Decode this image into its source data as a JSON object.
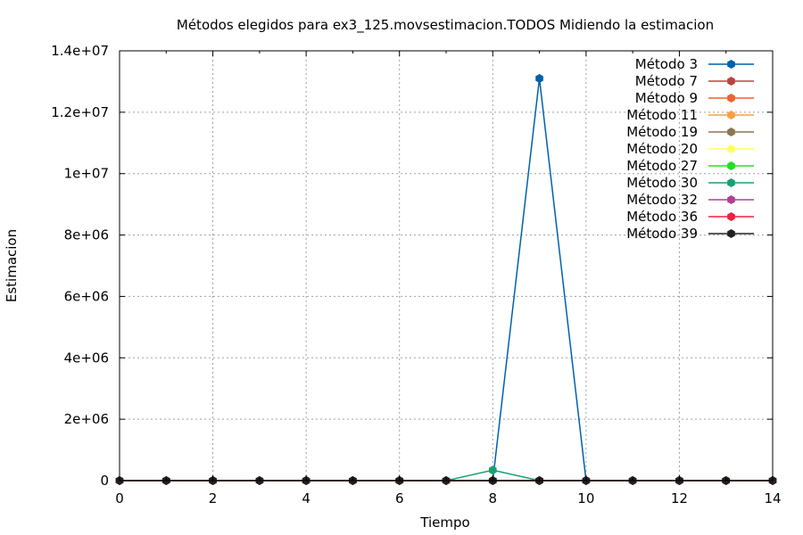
{
  "chart_data": {
    "type": "line",
    "title": "Métodos elegidos para ex3_125.movsestimacion.TODOS Midiendo la estimacion",
    "xlabel": "Tiempo",
    "ylabel": "Estimacion",
    "xlim": [
      0,
      14
    ],
    "ylim": [
      0,
      14000000
    ],
    "x_ticks": [
      0,
      2,
      4,
      6,
      8,
      10,
      12,
      14
    ],
    "x_tick_labels": [
      "0",
      "2",
      "4",
      "6",
      "8",
      "10",
      "12",
      "14"
    ],
    "y_ticks": [
      0,
      2000000,
      4000000,
      6000000,
      8000000,
      10000000,
      12000000,
      14000000
    ],
    "y_tick_labels": [
      "0",
      "2e+06",
      "4e+06",
      "6e+06",
      "8e+06",
      "1e+07",
      "1.2e+07",
      "1.4e+07"
    ],
    "grid": true,
    "legend_position": "top-right",
    "x": [
      0,
      1,
      2,
      3,
      4,
      5,
      6,
      7,
      8,
      9,
      10,
      11,
      12,
      13,
      14
    ],
    "series": [
      {
        "name": "Método 3",
        "color": "#0060ad",
        "values": [
          0,
          0,
          0,
          0,
          0,
          0,
          0,
          0,
          0,
          13100000,
          0,
          0,
          0,
          0,
          0
        ]
      },
      {
        "name": "Método 7",
        "color": "#c04040",
        "values": [
          0,
          0,
          0,
          0,
          0,
          0,
          0,
          0,
          0,
          0,
          0,
          0,
          0,
          0,
          0
        ]
      },
      {
        "name": "Método 9",
        "color": "#f06030",
        "values": [
          0,
          0,
          0,
          0,
          0,
          0,
          0,
          0,
          0,
          0,
          0,
          0,
          0,
          0,
          0
        ]
      },
      {
        "name": "Método 11",
        "color": "#f5a040",
        "values": [
          0,
          0,
          0,
          0,
          0,
          0,
          0,
          0,
          0,
          0,
          0,
          0,
          0,
          0,
          0
        ]
      },
      {
        "name": "Método 19",
        "color": "#8b7650",
        "values": [
          0,
          0,
          0,
          0,
          0,
          0,
          0,
          0,
          0,
          0,
          0,
          0,
          0,
          0,
          0
        ]
      },
      {
        "name": "Método 20",
        "color": "#ffff60",
        "values": [
          0,
          0,
          0,
          0,
          0,
          0,
          0,
          0,
          0,
          0,
          0,
          0,
          0,
          0,
          0
        ]
      },
      {
        "name": "Método 27",
        "color": "#20e020",
        "values": [
          0,
          0,
          0,
          0,
          0,
          0,
          0,
          0,
          0,
          0,
          0,
          0,
          0,
          0,
          0
        ]
      },
      {
        "name": "Método 30",
        "color": "#18a070",
        "values": [
          0,
          0,
          0,
          0,
          0,
          0,
          0,
          0,
          340000,
          0,
          0,
          0,
          0,
          0,
          0
        ]
      },
      {
        "name": "Método 32",
        "color": "#b04090",
        "values": [
          0,
          0,
          0,
          0,
          0,
          0,
          0,
          0,
          0,
          0,
          0,
          0,
          0,
          0,
          0
        ]
      },
      {
        "name": "Método 36",
        "color": "#f02040",
        "values": [
          0,
          0,
          0,
          0,
          0,
          0,
          0,
          0,
          0,
          0,
          0,
          0,
          0,
          0,
          0
        ]
      },
      {
        "name": "Método 39",
        "color": "#202020",
        "values": [
          0,
          0,
          0,
          0,
          0,
          0,
          0,
          0,
          0,
          0,
          0,
          0,
          0,
          0,
          0
        ]
      }
    ]
  }
}
